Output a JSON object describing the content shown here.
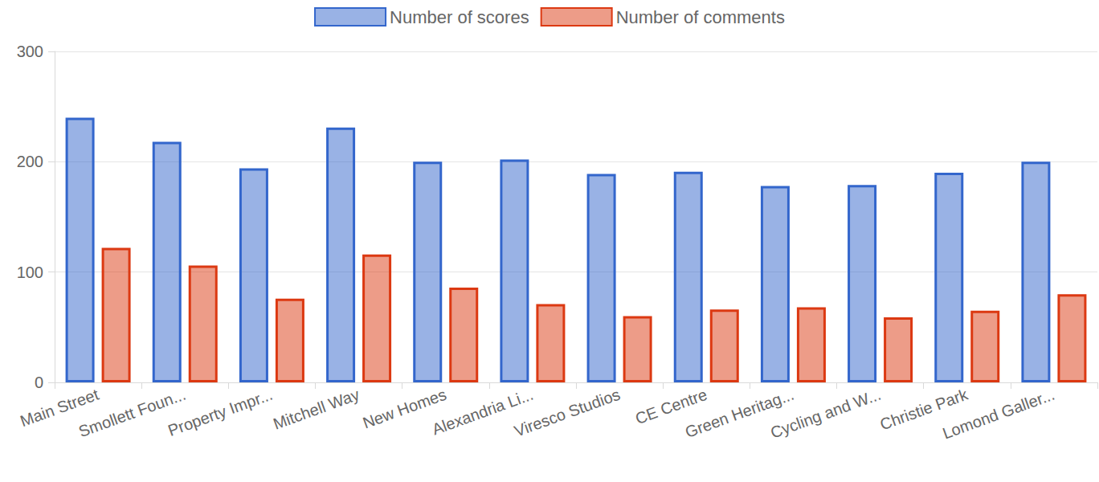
{
  "chart_data": {
    "type": "bar",
    "categories": [
      "Main Street",
      "Smollett Foun...",
      "Property Impr...",
      "Mitchell Way",
      "New Homes",
      "Alexandria Li...",
      "Viresco Studios",
      "CE Centre",
      "Green Heritag...",
      "Cycling and W...",
      "Christie Park",
      "Lomond Galler..."
    ],
    "series": [
      {
        "name": "Number of scores",
        "color": "#3366cc",
        "values": [
          240,
          218,
          194,
          231,
          200,
          202,
          189,
          191,
          178,
          179,
          190,
          200
        ]
      },
      {
        "name": "Number of comments",
        "color": "#dc3912",
        "values": [
          122,
          106,
          76,
          116,
          86,
          71,
          60,
          66,
          68,
          59,
          65,
          80
        ]
      }
    ],
    "ylim": [
      0,
      300
    ],
    "yticks": [
      0,
      100,
      200,
      300
    ],
    "grid": true,
    "legend": "top"
  }
}
